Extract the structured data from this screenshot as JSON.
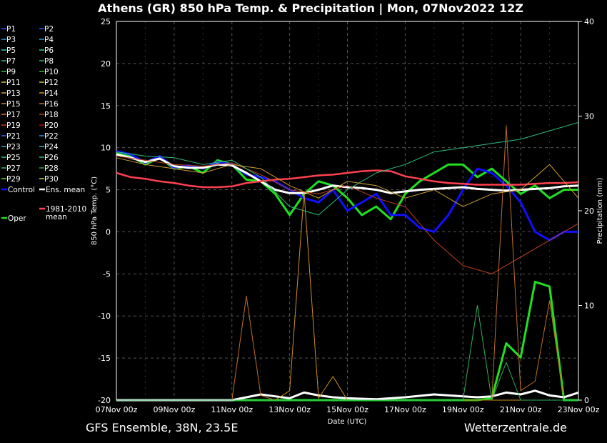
{
  "chart_data": {
    "type": "line",
    "title": "Athens  (GR)  850 hPa Temp. & Precipitation | Mon, 07Nov2022 12Z",
    "xlabel": "Date (UTC)",
    "ylabel": "850 hPa Temp. (°C)",
    "y2label": "Precipitation (mm)",
    "ylim": [
      -20,
      25
    ],
    "y2lim": [
      0,
      40
    ],
    "y_ticks": [
      25,
      20,
      15,
      10,
      5,
      0,
      -5,
      -10,
      -15,
      -20
    ],
    "y2_ticks": [
      40,
      30,
      20,
      10,
      0
    ],
    "x_tick_labels": [
      "07Nov 00z",
      "09Nov 00z",
      "11Nov 00z",
      "13Nov 00z",
      "15Nov 00z",
      "17Nov 00z",
      "19Nov 00z",
      "21Nov 00z",
      "23Nov 00z"
    ],
    "x_range_days": [
      0,
      16
    ],
    "grid": true,
    "legend": [
      {
        "name": "P1",
        "color": "#3050ff"
      },
      {
        "name": "P2",
        "color": "#3050ff"
      },
      {
        "name": "P3",
        "color": "#30a0e0"
      },
      {
        "name": "P4",
        "color": "#30a0e0"
      },
      {
        "name": "P5",
        "color": "#30c8c0"
      },
      {
        "name": "P6",
        "color": "#30c8a0"
      },
      {
        "name": "P7",
        "color": "#30b880"
      },
      {
        "name": "P8",
        "color": "#30b060"
      },
      {
        "name": "P9",
        "color": "#30c040"
      },
      {
        "name": "P10",
        "color": "#30c030"
      },
      {
        "name": "P11",
        "color": "#c8c040"
      },
      {
        "name": "P12",
        "color": "#c8c040"
      },
      {
        "name": "P13",
        "color": "#d0a030"
      },
      {
        "name": "P14",
        "color": "#d09020"
      },
      {
        "name": "P15",
        "color": "#d08030"
      },
      {
        "name": "P16",
        "color": "#c07020"
      },
      {
        "name": "P17",
        "color": "#e07030"
      },
      {
        "name": "P18",
        "color": "#c04020"
      },
      {
        "name": "P19",
        "color": "#d03020"
      },
      {
        "name": "P20",
        "color": "#b01010"
      },
      {
        "name": "P21",
        "color": "#3060ff"
      },
      {
        "name": "P22",
        "color": "#3090e0"
      },
      {
        "name": "P23",
        "color": "#40a0c0"
      },
      {
        "name": "P24",
        "color": "#40b0c0"
      },
      {
        "name": "P25",
        "color": "#30c0a0"
      },
      {
        "name": "P26",
        "color": "#30c080"
      },
      {
        "name": "P27",
        "color": "#30b060"
      },
      {
        "name": "P28",
        "color": "#30a040"
      },
      {
        "name": "P29",
        "color": "#60d030"
      },
      {
        "name": "P30",
        "color": "#c0d030"
      },
      {
        "name": "Control",
        "color": "#1010ff"
      },
      {
        "name": "Ens. mean",
        "color": "#ffffff"
      },
      {
        "name": "Oper",
        "color": "#20e020"
      },
      {
        "name": "1981-2010 mean",
        "color": "#ff4050"
      }
    ],
    "series": [
      {
        "name": "Oper",
        "axis": "temp",
        "x": [
          0,
          0.5,
          1,
          1.5,
          2,
          2.5,
          3,
          3.5,
          4,
          4.5,
          5,
          5.5,
          6,
          6.5,
          7,
          7.5,
          8,
          8.5,
          9,
          9.5,
          10,
          10.5,
          11,
          11.5,
          12,
          12.5,
          13,
          13.5,
          14,
          14.5,
          15,
          15.5,
          16
        ],
        "values": [
          9.3,
          9.0,
          8.0,
          8.8,
          7.5,
          7.8,
          7.0,
          8.5,
          8.0,
          6.2,
          6.0,
          4.5,
          2.0,
          4.5,
          6.0,
          5.5,
          4.0,
          2.0,
          3.0,
          1.5,
          4.5,
          6.0,
          7.0,
          8.0,
          8.0,
          6.5,
          7.5,
          6.0,
          4.5,
          5.5,
          4.0,
          5.0,
          5.0
        ]
      },
      {
        "name": "Control",
        "axis": "temp",
        "x": [
          0,
          0.5,
          1,
          1.5,
          2,
          2.5,
          3,
          3.5,
          4,
          4.5,
          5,
          5.5,
          6,
          6.5,
          7,
          7.5,
          8,
          8.5,
          9,
          9.5,
          10,
          10.5,
          11,
          11.5,
          12,
          12.5,
          13,
          13.5,
          14,
          14.5,
          15,
          15.5,
          16
        ],
        "values": [
          9.6,
          9.2,
          8.2,
          9.0,
          7.6,
          7.9,
          7.5,
          8.3,
          8.0,
          6.8,
          6.5,
          6.0,
          5.0,
          4.0,
          3.5,
          5.0,
          2.5,
          3.5,
          4.5,
          2.0,
          2.0,
          0.5,
          0.0,
          2.0,
          5.0,
          7.5,
          7.0,
          5.5,
          3.5,
          0.0,
          -1.0,
          0.0,
          0.0
        ]
      },
      {
        "name": "Ens. mean",
        "axis": "temp",
        "x": [
          0,
          0.5,
          1,
          1.5,
          2,
          2.5,
          3,
          3.5,
          4,
          4.5,
          5,
          5.5,
          6,
          6.5,
          7,
          7.5,
          8,
          8.5,
          9,
          9.5,
          10,
          10.5,
          11,
          11.5,
          12,
          12.5,
          13,
          13.5,
          14,
          14.5,
          15,
          15.5,
          16
        ],
        "values": [
          9.2,
          8.8,
          8.3,
          8.7,
          7.8,
          7.6,
          7.6,
          8.0,
          7.9,
          7.0,
          6.0,
          5.0,
          4.6,
          4.6,
          5.0,
          5.5,
          5.3,
          5.2,
          5.0,
          4.6,
          4.8,
          5.0,
          5.1,
          5.2,
          5.3,
          5.1,
          5.0,
          4.9,
          5.0,
          5.1,
          5.2,
          5.4,
          5.5
        ]
      },
      {
        "name": "1981-2010 mean",
        "axis": "temp",
        "x": [
          0,
          0.5,
          1,
          1.5,
          2,
          2.5,
          3,
          3.5,
          4,
          4.5,
          5,
          5.5,
          6,
          6.5,
          7,
          7.5,
          8,
          8.5,
          9,
          9.5,
          10,
          10.5,
          11,
          11.5,
          12,
          12.5,
          13,
          13.5,
          14,
          14.5,
          15,
          15.5,
          16
        ],
        "values": [
          7.0,
          6.5,
          6.3,
          6.0,
          5.8,
          5.5,
          5.3,
          5.3,
          5.4,
          5.8,
          6.0,
          6.2,
          6.3,
          6.5,
          6.7,
          6.8,
          7.0,
          7.2,
          7.3,
          7.2,
          6.6,
          6.3,
          6.0,
          5.8,
          5.7,
          5.6,
          5.6,
          5.6,
          5.6,
          5.7,
          5.8,
          5.8,
          5.9
        ]
      },
      {
        "name": "P18",
        "axis": "temp",
        "x": [
          0,
          1,
          2,
          3,
          4,
          5,
          6,
          7,
          8,
          9,
          10,
          11,
          12,
          13,
          14,
          15,
          16
        ],
        "values": [
          9.0,
          8.5,
          8.0,
          7.8,
          8.2,
          6.8,
          5.0,
          4.5,
          5.5,
          4.0,
          3.0,
          -1.0,
          -4.0,
          -5.0,
          -3.0,
          -1.0,
          1.0
        ]
      },
      {
        "name": "P26",
        "axis": "temp",
        "x": [
          0,
          1,
          2,
          3,
          4,
          5,
          6,
          7,
          8,
          9,
          10,
          11,
          12,
          13,
          14,
          15,
          16
        ],
        "values": [
          9.5,
          9.0,
          8.8,
          8.0,
          8.5,
          6.5,
          3.0,
          2.0,
          5.0,
          7.0,
          8.0,
          9.5,
          10.0,
          10.5,
          11.0,
          12.0,
          13.0
        ]
      },
      {
        "name": "P13",
        "axis": "temp",
        "x": [
          0,
          1,
          2,
          3,
          4,
          5,
          6,
          7,
          8,
          9,
          10,
          11,
          12,
          13,
          14,
          15,
          16
        ],
        "values": [
          8.8,
          8.0,
          7.5,
          7.0,
          8.0,
          7.5,
          5.5,
          4.0,
          6.0,
          5.5,
          4.0,
          5.0,
          3.0,
          4.5,
          5.0,
          8.0,
          4.0
        ]
      },
      {
        "name": "Oper",
        "axis": "precip",
        "x": [
          0,
          11.5,
          12,
          12.5,
          13,
          13.5,
          14,
          14.5,
          15,
          15.5,
          16
        ],
        "values": [
          0,
          0,
          0,
          0,
          0.2,
          6.0,
          4.5,
          12.5,
          12.0,
          0,
          0
        ]
      },
      {
        "name": "Ens. mean",
        "axis": "precip",
        "x": [
          0,
          4,
          4.5,
          5,
          6,
          6.5,
          7,
          7.5,
          8,
          9,
          10,
          11,
          12,
          12.5,
          13,
          13.5,
          14,
          14.5,
          15,
          15.5,
          16
        ],
        "values": [
          0,
          0,
          0.3,
          0.6,
          0.2,
          0.8,
          0.5,
          0.3,
          0.2,
          0.1,
          0.3,
          0.6,
          0.4,
          0.3,
          0.4,
          0.8,
          0.6,
          1.0,
          0.5,
          0.3,
          0.8
        ]
      },
      {
        "name": "P14",
        "axis": "precip",
        "x": [
          0,
          5.5,
          6,
          6.5,
          7,
          7.5,
          8,
          16
        ],
        "values": [
          0,
          0,
          1.0,
          22.0,
          0.2,
          2.5,
          0,
          0
        ]
      },
      {
        "name": "P16",
        "axis": "precip",
        "x": [
          0,
          4,
          4.5,
          5,
          5.5,
          13,
          13.5,
          14,
          14.5,
          15,
          15.5,
          16
        ],
        "values": [
          0,
          0,
          11.0,
          0.5,
          0,
          0,
          29.0,
          1.0,
          2.0,
          10.5,
          0,
          0
        ]
      },
      {
        "name": "P8",
        "axis": "precip",
        "x": [
          0,
          12,
          12.5,
          13,
          13.5,
          14,
          16
        ],
        "values": [
          0,
          0,
          10.0,
          0,
          4.0,
          0,
          0
        ]
      }
    ]
  },
  "footer": {
    "left": "GFS Ensemble, 38N, 23.5E",
    "right": "Wetterzentrale.de"
  }
}
